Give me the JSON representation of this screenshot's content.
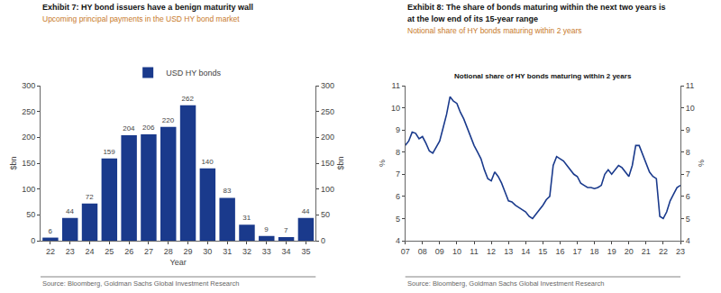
{
  "chart_data": [
    {
      "type": "bar",
      "title": "Exhibit 7: HY bond issuers have a benign maturity wall",
      "subtitle": "Upcoming principal payments in the USD HY bond market",
      "xlabel": "Year",
      "ylabel": "$bn",
      "y2label": "$bn",
      "categories": [
        "22",
        "23",
        "24",
        "25",
        "26",
        "27",
        "28",
        "29",
        "30",
        "31",
        "32",
        "33",
        "34",
        "35"
      ],
      "series": [
        {
          "name": "USD HY bonds",
          "color": "#1a3a8c",
          "values": [
            6,
            44,
            72,
            159,
            204,
            206,
            220,
            262,
            140,
            83,
            31,
            9,
            7,
            44
          ]
        }
      ],
      "ylim": [
        0,
        300
      ],
      "yticks": [
        0,
        50,
        100,
        150,
        200,
        250,
        300
      ],
      "y2lim": [
        0,
        300
      ],
      "y2ticks": [
        0,
        50,
        100,
        150,
        200,
        250,
        300
      ],
      "data_labels": true,
      "legend": "top",
      "grid": false,
      "source": "Source: Bloomberg, Goldman Sachs Global Investment Research"
    },
    {
      "type": "line",
      "title": [
        "Exhibit 8: The share of bonds maturing within the next two years is",
        "at the low end of its 15-year range"
      ],
      "subtitle": "Notional share of HY bonds maturing within 2 years",
      "annotations": [
        "Notional share of HY bonds maturing within 2 years"
      ],
      "ylabel": "%",
      "y2label": "%",
      "categories": [
        "07",
        null,
        null,
        null,
        null,
        "08",
        null,
        null,
        null,
        null,
        "09",
        null,
        null,
        null,
        null,
        "10",
        null,
        null,
        null,
        null,
        "11",
        null,
        null,
        null,
        null,
        "12",
        null,
        null,
        null,
        null,
        "13",
        null,
        null,
        null,
        null,
        "14",
        null,
        null,
        null,
        null,
        "15",
        null,
        null,
        null,
        null,
        "16",
        null,
        null,
        null,
        null,
        "17",
        null,
        null,
        null,
        null,
        "18",
        null,
        null,
        null,
        null,
        "19",
        null,
        null,
        null,
        null,
        "20",
        null,
        null,
        null,
        null,
        "21",
        null,
        null,
        null,
        null,
        "22",
        null,
        null,
        null,
        null,
        "23"
      ],
      "series": [
        {
          "name": "Notional share of HY bonds maturing within 2 years",
          "color": "#1a3a8c",
          "values": [
            8.3,
            8.5,
            8.9,
            8.85,
            8.6,
            8.7,
            8.4,
            8.05,
            7.95,
            8.2,
            8.5,
            9.1,
            9.7,
            10.5,
            10.3,
            10.2,
            9.8,
            9.5,
            9.1,
            8.7,
            8.3,
            8.0,
            7.7,
            7.2,
            6.8,
            6.7,
            7.1,
            6.9,
            6.6,
            6.2,
            5.8,
            5.75,
            5.6,
            5.5,
            5.4,
            5.3,
            5.1,
            5.0,
            5.2,
            5.4,
            5.6,
            5.85,
            6.0,
            7.4,
            7.8,
            7.7,
            7.6,
            7.4,
            7.2,
            7.0,
            6.9,
            6.6,
            6.5,
            6.4,
            6.4,
            6.35,
            6.4,
            6.5,
            7.0,
            7.2,
            7.0,
            7.2,
            7.4,
            7.3,
            7.1,
            6.9,
            7.4,
            8.3,
            8.3,
            7.9,
            7.5,
            7.1,
            6.9,
            6.8,
            5.1,
            5.0,
            5.3,
            5.8,
            6.1,
            6.4,
            6.5
          ]
        }
      ],
      "ylim": [
        4,
        11
      ],
      "yticks": [
        4,
        5,
        6,
        7,
        8,
        9,
        10,
        11
      ],
      "y2lim": [
        4,
        11
      ],
      "y2ticks": [
        4,
        5,
        6,
        7,
        8,
        9,
        10,
        11
      ],
      "grid": false,
      "source": "Source: Bloomberg, Goldman Sachs Global Investment Research"
    }
  ]
}
